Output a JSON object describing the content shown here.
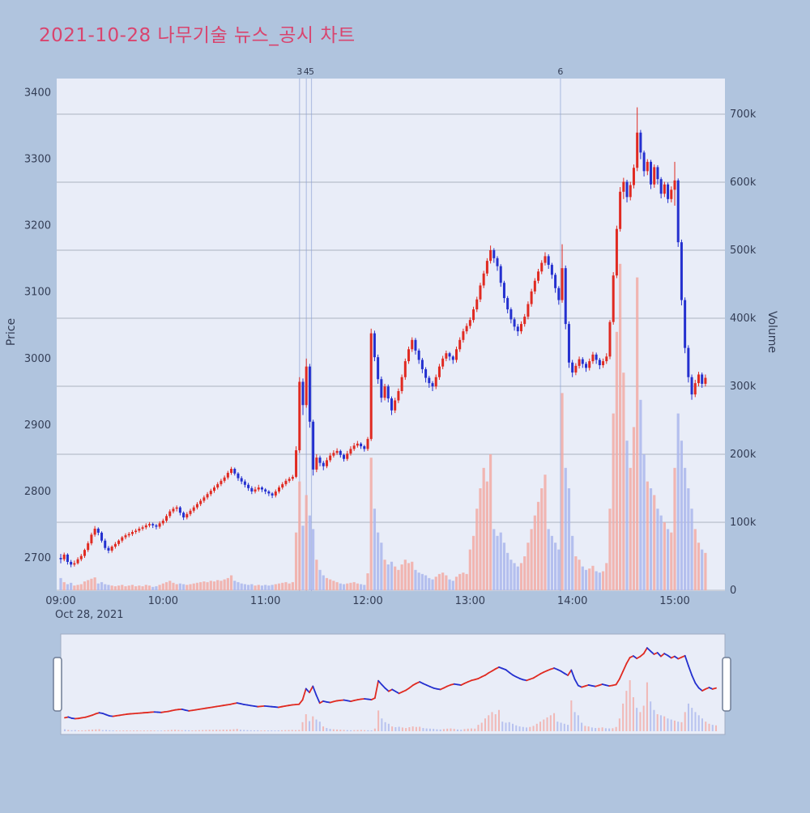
{
  "title": "2021-10-28 나무기술 뉴스_공시 차트",
  "date_label": "Oct 28, 2021",
  "axes": {
    "price_title": "Price",
    "volume_title": "Volume",
    "price_ticks": [
      3400,
      3300,
      3200,
      3100,
      3000,
      2900,
      2800,
      2700
    ],
    "volume_tick_labels": [
      "0",
      "100k",
      "200k",
      "300k",
      "400k",
      "500k",
      "600k",
      "700k"
    ],
    "volume_tick_values": [
      0,
      100000,
      200000,
      300000,
      400000,
      500000,
      600000,
      700000
    ],
    "time_ticks": [
      "09:00",
      "10:00",
      "11:00",
      "12:00",
      "13:00",
      "14:00",
      "15:00"
    ]
  },
  "events": [
    {
      "label": "3",
      "minute": 140
    },
    {
      "label": "4",
      "minute": 144
    },
    {
      "label": "5",
      "minute": 147
    },
    {
      "label": "6",
      "minute": 293
    }
  ],
  "colors": {
    "page_bg": "#b0c4de",
    "plot_bg": "#e9edf8",
    "title": "#d9446e",
    "axis_text": "#333d55",
    "grid": "#7a8494",
    "up": "#e02a21",
    "down": "#2430cf",
    "vol_up": "#f2aaa5",
    "vol_down": "#aab6ec",
    "event_line": "#8fa3d6",
    "nav_border": "#9fabc2",
    "handle_fill": "#ffffff",
    "handle_border": "#6f7d95"
  },
  "chart_data": {
    "type": "candlestick",
    "title": "2021-10-28 나무기술 뉴스_공시 차트",
    "xlabel": "time",
    "ylabel_left": "Price",
    "ylabel_right": "Volume",
    "x_start": "09:00",
    "step_min": 2,
    "price_range": [
      2650,
      3420
    ],
    "volume_range": [
      0,
      700000
    ],
    "columns": [
      "open",
      "high",
      "low",
      "close",
      "volume"
    ],
    "candles": [
      [
        2700,
        2706,
        2692,
        2698,
        18000
      ],
      [
        2698,
        2708,
        2695,
        2705,
        12000
      ],
      [
        2705,
        2707,
        2690,
        2694,
        9000
      ],
      [
        2694,
        2697,
        2686,
        2690,
        11000
      ],
      [
        2690,
        2696,
        2687,
        2692,
        7000
      ],
      [
        2692,
        2701,
        2690,
        2698,
        8000
      ],
      [
        2698,
        2706,
        2695,
        2703,
        9000
      ],
      [
        2703,
        2714,
        2700,
        2712,
        13000
      ],
      [
        2712,
        2725,
        2709,
        2722,
        15000
      ],
      [
        2722,
        2738,
        2719,
        2735,
        17000
      ],
      [
        2735,
        2748,
        2732,
        2744,
        19000
      ],
      [
        2744,
        2746,
        2734,
        2738,
        10000
      ],
      [
        2738,
        2740,
        2723,
        2726,
        12000
      ],
      [
        2726,
        2729,
        2712,
        2715,
        9000
      ],
      [
        2715,
        2718,
        2707,
        2711,
        8000
      ],
      [
        2711,
        2719,
        2708,
        2717,
        7000
      ],
      [
        2717,
        2724,
        2714,
        2721,
        6000
      ],
      [
        2721,
        2728,
        2718,
        2726,
        7000
      ],
      [
        2726,
        2733,
        2723,
        2731,
        8000
      ],
      [
        2731,
        2737,
        2728,
        2734,
        6000
      ],
      [
        2734,
        2739,
        2731,
        2736,
        7000
      ],
      [
        2736,
        2742,
        2733,
        2739,
        8000
      ],
      [
        2739,
        2744,
        2736,
        2741,
        6000
      ],
      [
        2741,
        2747,
        2738,
        2744,
        7000
      ],
      [
        2744,
        2749,
        2741,
        2746,
        6000
      ],
      [
        2746,
        2752,
        2743,
        2749,
        8000
      ],
      [
        2749,
        2754,
        2746,
        2751,
        7000
      ],
      [
        2751,
        2753,
        2745,
        2749,
        5000
      ],
      [
        2749,
        2751,
        2743,
        2747,
        6000
      ],
      [
        2747,
        2755,
        2744,
        2752,
        8000
      ],
      [
        2752,
        2759,
        2749,
        2756,
        10000
      ],
      [
        2756,
        2766,
        2753,
        2763,
        12000
      ],
      [
        2763,
        2773,
        2760,
        2770,
        14000
      ],
      [
        2770,
        2777,
        2767,
        2774,
        11000
      ],
      [
        2774,
        2779,
        2770,
        2776,
        9000
      ],
      [
        2776,
        2778,
        2764,
        2768,
        10000
      ],
      [
        2768,
        2770,
        2757,
        2761,
        9000
      ],
      [
        2761,
        2769,
        2758,
        2766,
        8000
      ],
      [
        2766,
        2774,
        2763,
        2771,
        9000
      ],
      [
        2771,
        2779,
        2768,
        2776,
        10000
      ],
      [
        2776,
        2784,
        2773,
        2781,
        11000
      ],
      [
        2781,
        2789,
        2778,
        2786,
        12000
      ],
      [
        2786,
        2794,
        2783,
        2791,
        13000
      ],
      [
        2791,
        2799,
        2788,
        2796,
        12000
      ],
      [
        2796,
        2804,
        2793,
        2801,
        14000
      ],
      [
        2801,
        2809,
        2798,
        2806,
        13000
      ],
      [
        2806,
        2814,
        2803,
        2811,
        15000
      ],
      [
        2811,
        2819,
        2808,
        2816,
        14000
      ],
      [
        2816,
        2824,
        2813,
        2821,
        16000
      ],
      [
        2821,
        2831,
        2818,
        2828,
        18000
      ],
      [
        2828,
        2837,
        2825,
        2834,
        22000
      ],
      [
        2834,
        2836,
        2824,
        2827,
        14000
      ],
      [
        2827,
        2829,
        2816,
        2820,
        12000
      ],
      [
        2820,
        2823,
        2811,
        2815,
        10000
      ],
      [
        2815,
        2818,
        2806,
        2810,
        9000
      ],
      [
        2810,
        2813,
        2801,
        2805,
        8000
      ],
      [
        2805,
        2808,
        2796,
        2800,
        9000
      ],
      [
        2800,
        2807,
        2797,
        2803,
        7000
      ],
      [
        2803,
        2810,
        2800,
        2806,
        8000
      ],
      [
        2806,
        2808,
        2799,
        2803,
        7000
      ],
      [
        2803,
        2805,
        2796,
        2800,
        8000
      ],
      [
        2800,
        2802,
        2793,
        2797,
        7000
      ],
      [
        2797,
        2799,
        2790,
        2794,
        8000
      ],
      [
        2794,
        2803,
        2791,
        2800,
        9000
      ],
      [
        2800,
        2809,
        2797,
        2806,
        10000
      ],
      [
        2806,
        2814,
        2803,
        2811,
        11000
      ],
      [
        2811,
        2819,
        2808,
        2816,
        12000
      ],
      [
        2816,
        2822,
        2813,
        2819,
        10000
      ],
      [
        2819,
        2825,
        2816,
        2822,
        12000
      ],
      [
        2822,
        2868,
        2820,
        2862,
        85000
      ],
      [
        2862,
        2972,
        2858,
        2965,
        160000
      ],
      [
        2965,
        2970,
        2915,
        2930,
        95000
      ],
      [
        2930,
        3000,
        2926,
        2988,
        140000
      ],
      [
        2988,
        2992,
        2896,
        2905,
        110000
      ],
      [
        2905,
        2908,
        2824,
        2833,
        90000
      ],
      [
        2833,
        2856,
        2829,
        2851,
        45000
      ],
      [
        2851,
        2854,
        2838,
        2843,
        30000
      ],
      [
        2843,
        2846,
        2832,
        2838,
        22000
      ],
      [
        2838,
        2851,
        2835,
        2847,
        18000
      ],
      [
        2847,
        2858,
        2844,
        2854,
        16000
      ],
      [
        2854,
        2862,
        2851,
        2858,
        14000
      ],
      [
        2858,
        2865,
        2855,
        2861,
        12000
      ],
      [
        2861,
        2863,
        2851,
        2855,
        10000
      ],
      [
        2855,
        2857,
        2845,
        2849,
        9000
      ],
      [
        2849,
        2861,
        2846,
        2857,
        10000
      ],
      [
        2857,
        2868,
        2854,
        2864,
        11000
      ],
      [
        2864,
        2873,
        2861,
        2869,
        12000
      ],
      [
        2869,
        2876,
        2866,
        2872,
        10000
      ],
      [
        2872,
        2874,
        2864,
        2868,
        9000
      ],
      [
        2868,
        2870,
        2860,
        2864,
        8000
      ],
      [
        2864,
        2882,
        2861,
        2879,
        25000
      ],
      [
        2879,
        3045,
        2876,
        3038,
        195000
      ],
      [
        3038,
        3042,
        2996,
        3002,
        120000
      ],
      [
        3002,
        3006,
        2962,
        2969,
        85000
      ],
      [
        2969,
        2973,
        2934,
        2941,
        70000
      ],
      [
        2941,
        2962,
        2937,
        2958,
        45000
      ],
      [
        2958,
        2961,
        2934,
        2940,
        38000
      ],
      [
        2940,
        2943,
        2915,
        2922,
        42000
      ],
      [
        2922,
        2941,
        2918,
        2937,
        35000
      ],
      [
        2937,
        2955,
        2933,
        2951,
        30000
      ],
      [
        2951,
        2976,
        2947,
        2972,
        38000
      ],
      [
        2972,
        3000,
        2968,
        2996,
        45000
      ],
      [
        2996,
        3018,
        2992,
        3014,
        40000
      ],
      [
        3014,
        3032,
        3010,
        3028,
        42000
      ],
      [
        3028,
        3031,
        3006,
        3012,
        30000
      ],
      [
        3012,
        3015,
        2992,
        2998,
        26000
      ],
      [
        2998,
        3001,
        2978,
        2984,
        24000
      ],
      [
        2984,
        2987,
        2964,
        2971,
        22000
      ],
      [
        2971,
        2974,
        2956,
        2963,
        18000
      ],
      [
        2963,
        2966,
        2951,
        2958,
        16000
      ],
      [
        2958,
        2976,
        2954,
        2972,
        20000
      ],
      [
        2972,
        2992,
        2968,
        2988,
        24000
      ],
      [
        2988,
        3004,
        2984,
        3000,
        26000
      ],
      [
        3000,
        3012,
        2996,
        3008,
        22000
      ],
      [
        3008,
        3010,
        2997,
        3003,
        16000
      ],
      [
        3003,
        3005,
        2992,
        2998,
        14000
      ],
      [
        2998,
        3018,
        2994,
        3014,
        20000
      ],
      [
        3014,
        3032,
        3010,
        3028,
        24000
      ],
      [
        3028,
        3045,
        3024,
        3041,
        26000
      ],
      [
        3041,
        3053,
        3037,
        3049,
        24000
      ],
      [
        3049,
        3062,
        3045,
        3058,
        60000
      ],
      [
        3058,
        3078,
        3054,
        3074,
        80000
      ],
      [
        3074,
        3093,
        3070,
        3089,
        120000
      ],
      [
        3089,
        3114,
        3085,
        3110,
        150000
      ],
      [
        3110,
        3132,
        3106,
        3128,
        180000
      ],
      [
        3128,
        3151,
        3124,
        3147,
        160000
      ],
      [
        3147,
        3170,
        3143,
        3163,
        200000
      ],
      [
        3163,
        3166,
        3144,
        3151,
        90000
      ],
      [
        3151,
        3154,
        3132,
        3139,
        80000
      ],
      [
        3139,
        3142,
        3108,
        3114,
        85000
      ],
      [
        3114,
        3117,
        3084,
        3091,
        70000
      ],
      [
        3091,
        3094,
        3068,
        3074,
        55000
      ],
      [
        3074,
        3077,
        3053,
        3059,
        45000
      ],
      [
        3059,
        3062,
        3042,
        3048,
        40000
      ],
      [
        3048,
        3052,
        3034,
        3041,
        35000
      ],
      [
        3041,
        3056,
        3037,
        3052,
        40000
      ],
      [
        3052,
        3067,
        3048,
        3063,
        50000
      ],
      [
        3063,
        3086,
        3059,
        3082,
        70000
      ],
      [
        3082,
        3105,
        3078,
        3101,
        90000
      ],
      [
        3101,
        3121,
        3097,
        3117,
        110000
      ],
      [
        3117,
        3135,
        3113,
        3131,
        130000
      ],
      [
        3131,
        3148,
        3127,
        3144,
        150000
      ],
      [
        3144,
        3160,
        3140,
        3154,
        170000
      ],
      [
        3154,
        3157,
        3135,
        3141,
        90000
      ],
      [
        3141,
        3144,
        3120,
        3126,
        80000
      ],
      [
        3126,
        3129,
        3099,
        3106,
        70000
      ],
      [
        3106,
        3109,
        3081,
        3088,
        60000
      ],
      [
        3088,
        3172,
        3084,
        3136,
        290000
      ],
      [
        3136,
        3140,
        3044,
        3052,
        180000
      ],
      [
        3052,
        3056,
        2986,
        2994,
        150000
      ],
      [
        2994,
        2998,
        2972,
        2979,
        80000
      ],
      [
        2979,
        2993,
        2975,
        2989,
        50000
      ],
      [
        2989,
        3003,
        2985,
        2999,
        45000
      ],
      [
        2999,
        3002,
        2986,
        2992,
        35000
      ],
      [
        2992,
        2995,
        2980,
        2986,
        30000
      ],
      [
        2986,
        3000,
        2982,
        2996,
        32000
      ],
      [
        2996,
        3010,
        2992,
        3006,
        36000
      ],
      [
        3006,
        3009,
        2992,
        2998,
        28000
      ],
      [
        2998,
        3001,
        2984,
        2990,
        26000
      ],
      [
        2990,
        3000,
        2986,
        2996,
        28000
      ],
      [
        2996,
        3008,
        2992,
        3003,
        40000
      ],
      [
        3003,
        3058,
        2999,
        3055,
        120000
      ],
      [
        3055,
        3130,
        3051,
        3125,
        260000
      ],
      [
        3125,
        3200,
        3121,
        3195,
        380000
      ],
      [
        3195,
        3258,
        3191,
        3251,
        480000
      ],
      [
        3251,
        3272,
        3240,
        3266,
        320000
      ],
      [
        3266,
        3269,
        3235,
        3243,
        220000
      ],
      [
        3243,
        3266,
        3238,
        3261,
        180000
      ],
      [
        3261,
        3292,
        3256,
        3287,
        240000
      ],
      [
        3287,
        3378,
        3282,
        3340,
        460000
      ],
      [
        3340,
        3344,
        3300,
        3310,
        280000
      ],
      [
        3310,
        3313,
        3274,
        3282,
        200000
      ],
      [
        3282,
        3300,
        3276,
        3296,
        160000
      ],
      [
        3296,
        3299,
        3255,
        3262,
        150000
      ],
      [
        3262,
        3292,
        3257,
        3288,
        140000
      ],
      [
        3288,
        3291,
        3262,
        3270,
        120000
      ],
      [
        3270,
        3273,
        3241,
        3248,
        110000
      ],
      [
        3248,
        3266,
        3243,
        3262,
        100000
      ],
      [
        3262,
        3265,
        3234,
        3240,
        90000
      ],
      [
        3240,
        3259,
        3235,
        3254,
        85000
      ],
      [
        3254,
        3296,
        3230,
        3268,
        180000
      ],
      [
        3268,
        3271,
        3168,
        3175,
        260000
      ],
      [
        3175,
        3179,
        3080,
        3088,
        220000
      ],
      [
        3088,
        3092,
        3008,
        3016,
        180000
      ],
      [
        3016,
        3020,
        2964,
        2972,
        150000
      ],
      [
        2972,
        2976,
        2938,
        2946,
        120000
      ],
      [
        2946,
        2968,
        2942,
        2963,
        90000
      ],
      [
        2963,
        2980,
        2958,
        2976,
        70000
      ],
      [
        2976,
        2979,
        2956,
        2962,
        60000
      ],
      [
        2962,
        2976,
        2958,
        2971,
        55000
      ]
    ]
  }
}
